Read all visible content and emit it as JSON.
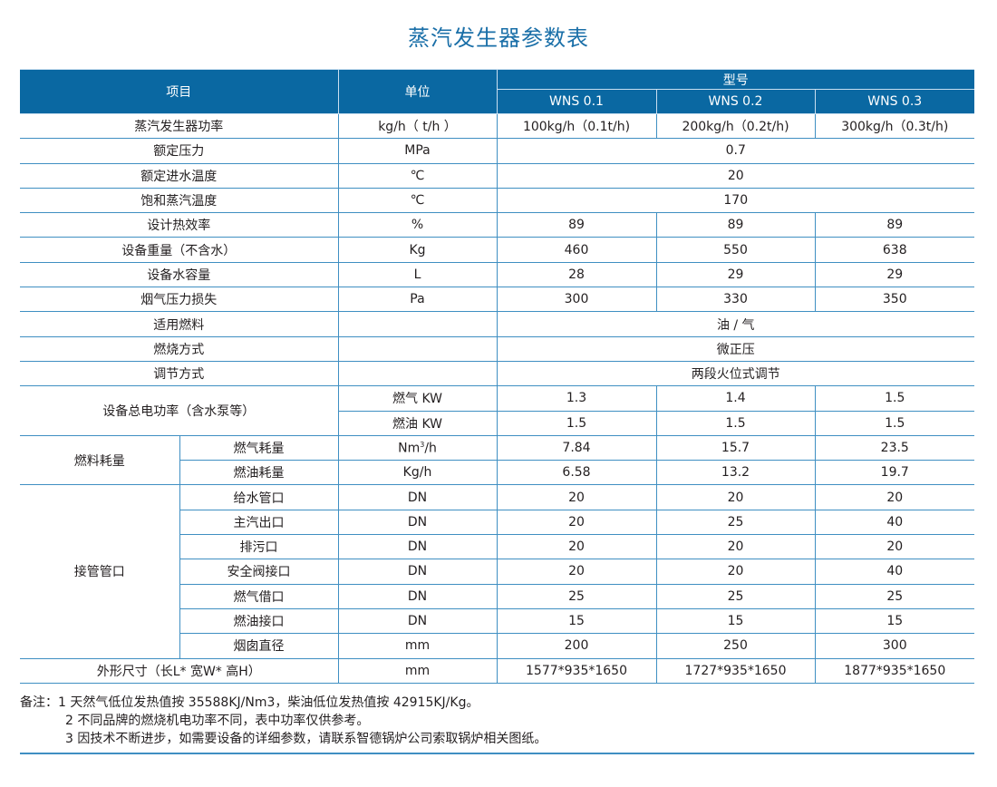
{
  "title": "蒸汽发生器参数表",
  "header": {
    "item": "项目",
    "unit": "单位",
    "model": "型号",
    "models": [
      "WNS 0.1",
      "WNS 0.2",
      "WNS 0.3"
    ]
  },
  "rows": [
    {
      "group": "",
      "label": "蒸汽发生器功率",
      "unit": "kg/h（ t/h ）",
      "values": [
        "100kg/h（0.1t/h)",
        "200kg/h（0.2t/h)",
        "300kg/h（0.3t/h)"
      ]
    },
    {
      "group": "",
      "label": "额定压力",
      "unit": "MPa",
      "values": [
        "0.7"
      ]
    },
    {
      "group": "",
      "label": "额定进水温度",
      "unit": "℃",
      "values": [
        "20"
      ]
    },
    {
      "group": "",
      "label": "饱和蒸汽温度",
      "unit": "℃",
      "values": [
        "170"
      ]
    },
    {
      "group": "",
      "label": "设计热效率",
      "unit": "%",
      "values": [
        "89",
        "89",
        "89"
      ]
    },
    {
      "group": "",
      "label": "设备重量（不含水）",
      "unit": "Kg",
      "values": [
        "460",
        "550",
        "638"
      ]
    },
    {
      "group": "",
      "label": "设备水容量",
      "unit": "L",
      "values": [
        "28",
        "29",
        "29"
      ]
    },
    {
      "group": "",
      "label": "烟气压力损失",
      "unit": "Pa",
      "values": [
        "300",
        "330",
        "350"
      ]
    },
    {
      "group": "",
      "label": "适用燃料",
      "unit": "",
      "values": [
        "油 / 气"
      ]
    },
    {
      "group": "",
      "label": "燃烧方式",
      "unit": "",
      "values": [
        "微正压"
      ]
    },
    {
      "group": "",
      "label": "调节方式",
      "unit": "",
      "values": [
        "两段火位式调节"
      ]
    },
    {
      "group": "设备总电功率（含水泵等）",
      "groupSpan": 2,
      "groupWide": true,
      "label": "",
      "unit": "燃气 KW",
      "values": [
        "1.3",
        "1.4",
        "1.5"
      ]
    },
    {
      "group": "设备总电功率（含水泵等）",
      "label": "",
      "unit": "燃油 KW",
      "values": [
        "1.5",
        "1.5",
        "1.5"
      ]
    },
    {
      "group": "燃料耗量",
      "groupSpan": 2,
      "label": "燃气耗量",
      "unit": "Nm³/h",
      "values": [
        "7.84",
        "15.7",
        "23.5"
      ]
    },
    {
      "group": "燃料耗量",
      "label": "燃油耗量",
      "unit": "Kg/h",
      "values": [
        "6.58",
        "13.2",
        "19.7"
      ]
    },
    {
      "group": "接管管口",
      "groupSpan": 7,
      "label": "给水管口",
      "unit": "DN",
      "values": [
        "20",
        "20",
        "20"
      ]
    },
    {
      "group": "接管管口",
      "label": "主汽出口",
      "unit": "DN",
      "values": [
        "20",
        "25",
        "40"
      ]
    },
    {
      "group": "接管管口",
      "label": "排污口",
      "unit": "DN",
      "values": [
        "20",
        "20",
        "20"
      ]
    },
    {
      "group": "接管管口",
      "label": "安全阀接口",
      "unit": "DN",
      "values": [
        "20",
        "20",
        "40"
      ]
    },
    {
      "group": "接管管口",
      "label": "燃气借口",
      "unit": "DN",
      "values": [
        "25",
        "25",
        "25"
      ]
    },
    {
      "group": "接管管口",
      "label": "燃油接口",
      "unit": "DN",
      "values": [
        "15",
        "15",
        "15"
      ]
    },
    {
      "group": "接管管口",
      "label": "烟囱直径",
      "unit": "mm",
      "values": [
        "200",
        "250",
        "300"
      ]
    },
    {
      "group": "",
      "label": "外形尺寸（长L* 宽W* 高H）",
      "unit": "mm",
      "values": [
        "1577*935*1650",
        "1727*935*1650",
        "1877*935*1650"
      ]
    }
  ],
  "notes": [
    "备注：1  天然气低位发热值按 35588KJ/Nm3，柴油低位发热值按 42915KJ/Kg。",
    "2  不同品牌的燃烧机电功率不同，表中功率仅供参考。",
    "3  因技术不断进步，如需要设备的详细参数，请联系智德锅炉公司索取锅炉相关图纸。"
  ],
  "colors": {
    "header_bg": "#0a68a2",
    "rule": "#3f8fc2",
    "title": "#1a6fa8"
  }
}
